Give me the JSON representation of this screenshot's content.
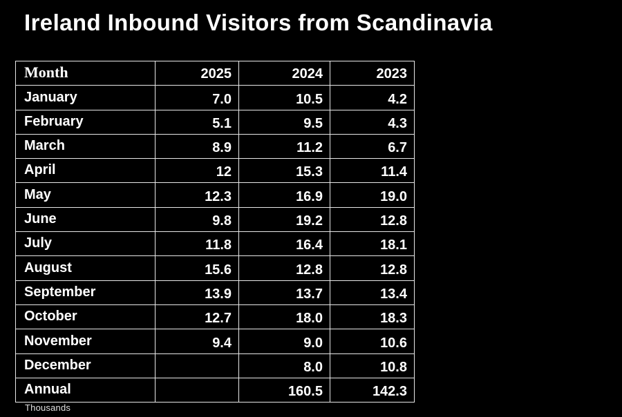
{
  "title": "Ireland Inbound Visitors from Scandinavia",
  "footnote": "Thousands",
  "colors": {
    "background": "#000000",
    "text": "#ffffff",
    "border": "#e9e9e9"
  },
  "table": {
    "columns": [
      "Month",
      "2025",
      "2024",
      "2023"
    ],
    "rows": [
      [
        "January",
        "7.0",
        "10.5",
        "4.2"
      ],
      [
        "February",
        "5.1",
        "9.5",
        "4.3"
      ],
      [
        "March",
        "8.9",
        "11.2",
        "6.7"
      ],
      [
        "April",
        "12",
        "15.3",
        "11.4"
      ],
      [
        "May",
        "12.3",
        "16.9",
        "19.0"
      ],
      [
        "June",
        "9.8",
        "19.2",
        "12.8"
      ],
      [
        "July",
        "11.8",
        "16.4",
        "18.1"
      ],
      [
        "August",
        "15.6",
        "12.8",
        "12.8"
      ],
      [
        "September",
        "13.9",
        "13.7",
        "13.4"
      ],
      [
        "October",
        "12.7",
        "18.0",
        "18.3"
      ],
      [
        "November",
        "9.4",
        "9.0",
        "10.6"
      ],
      [
        "December",
        "",
        "8.0",
        "10.8"
      ],
      [
        "Annual",
        "",
        "160.5",
        "142.3"
      ]
    ]
  },
  "chart_data": {
    "type": "table",
    "title": "Ireland Inbound Visitors from Scandinavia",
    "unit_note": "Thousands",
    "categories": [
      "January",
      "February",
      "March",
      "April",
      "May",
      "June",
      "July",
      "August",
      "September",
      "October",
      "November",
      "December",
      "Annual"
    ],
    "series": [
      {
        "name": "2025",
        "values": [
          7.0,
          5.1,
          8.9,
          12,
          12.3,
          9.8,
          11.8,
          15.6,
          13.9,
          12.7,
          9.4,
          null,
          null
        ]
      },
      {
        "name": "2024",
        "values": [
          10.5,
          9.5,
          11.2,
          15.3,
          16.9,
          19.2,
          16.4,
          12.8,
          13.7,
          18.0,
          9.0,
          8.0,
          160.5
        ]
      },
      {
        "name": "2023",
        "values": [
          4.2,
          4.3,
          6.7,
          11.4,
          19.0,
          12.8,
          18.1,
          12.8,
          13.4,
          18.3,
          10.6,
          10.8,
          142.3
        ]
      }
    ]
  }
}
